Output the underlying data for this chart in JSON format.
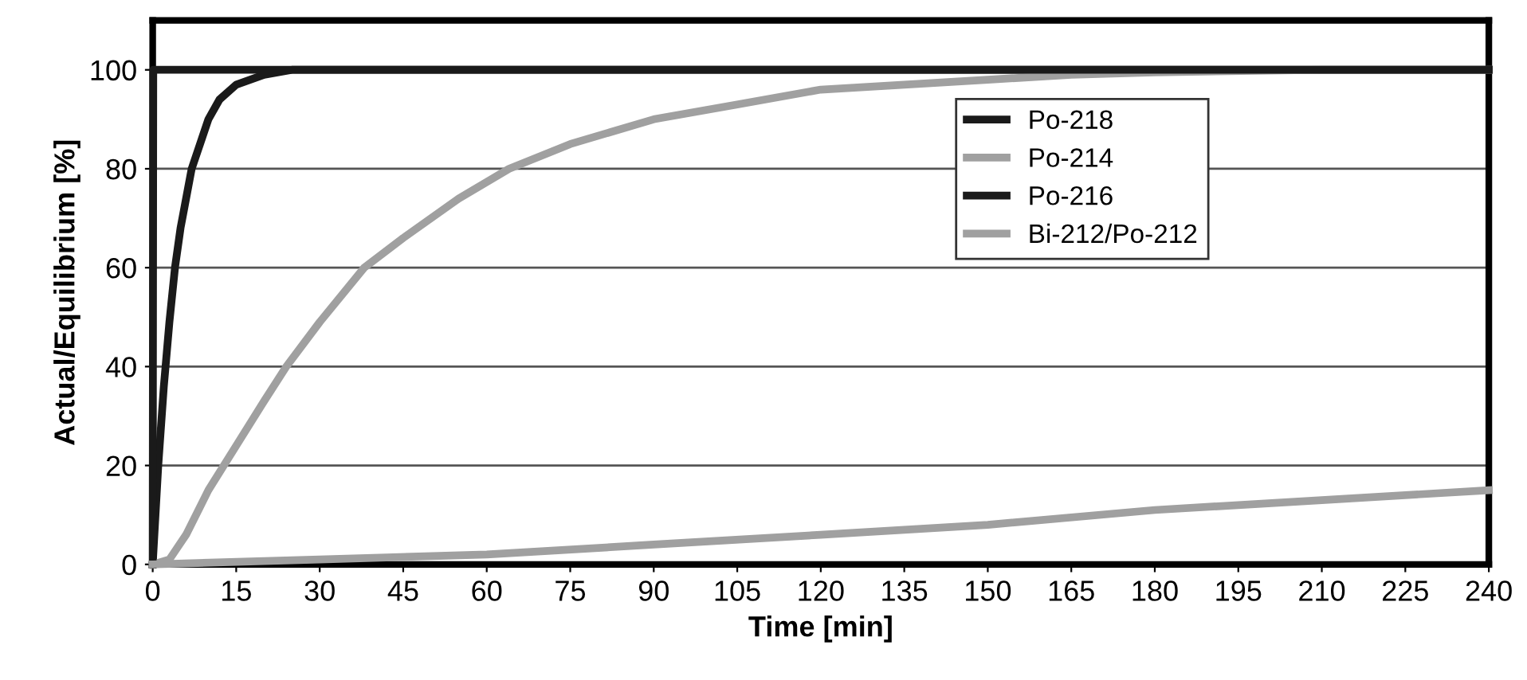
{
  "chart_data": {
    "type": "line",
    "xlabel": "Time [min]",
    "ylabel": "Actual/Equilibrium [%]",
    "xlim": [
      0,
      240
    ],
    "ylim": [
      0,
      110
    ],
    "xticks": [
      0,
      15,
      30,
      45,
      60,
      75,
      90,
      105,
      120,
      135,
      150,
      165,
      180,
      195,
      210,
      225,
      240
    ],
    "yticks": [
      0,
      20,
      40,
      60,
      80,
      100
    ],
    "grid": "y",
    "legend": "top right",
    "marker": "none",
    "line_style": "solid",
    "series": [
      {
        "name": "Po-218",
        "color": "#1a1a1a",
        "x": [
          0,
          1,
          2,
          3,
          4,
          5,
          7,
          10,
          12,
          15,
          20,
          25,
          240
        ],
        "values": [
          0,
          20,
          36,
          49,
          60,
          68,
          80,
          90,
          94,
          97,
          99,
          100,
          100
        ]
      },
      {
        "name": "Po-214",
        "color": "#a0a0a0",
        "x": [
          0,
          3,
          6,
          10,
          15,
          20,
          24,
          30,
          38,
          45,
          55,
          64,
          75,
          90,
          105,
          120,
          135,
          150,
          165,
          180,
          210,
          240
        ],
        "values": [
          0,
          1,
          6,
          15,
          24,
          33,
          40,
          49,
          60,
          66,
          74,
          80,
          85,
          90,
          93,
          96,
          97,
          98,
          99,
          99.5,
          100,
          100
        ]
      },
      {
        "name": "Po-216",
        "color": "#1a1a1a",
        "x": [
          0,
          0.1,
          240
        ],
        "values": [
          0,
          100,
          100
        ]
      },
      {
        "name": "Bi-212/Po-212",
        "color": "#a0a0a0",
        "x": [
          0,
          30,
          60,
          90,
          120,
          150,
          180,
          210,
          240
        ],
        "values": [
          0,
          1,
          2,
          4,
          6,
          8,
          11,
          13,
          15
        ]
      }
    ]
  }
}
